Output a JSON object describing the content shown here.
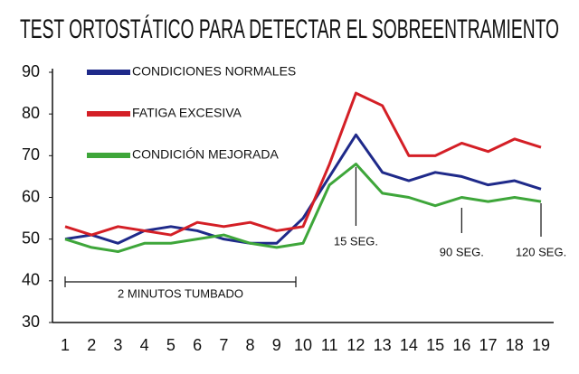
{
  "chart_data": {
    "type": "line",
    "title": "TEST ORTOSTÁTICO PARA DETECTAR EL SOBREENTRAMIENTO",
    "categories": [
      1,
      2,
      3,
      4,
      5,
      6,
      7,
      8,
      9,
      10,
      11,
      12,
      13,
      14,
      15,
      16,
      17,
      18,
      19
    ],
    "series": [
      {
        "name": "CONDICIONES NORMALES",
        "color": "#1f2a8a",
        "values": [
          50,
          51,
          49,
          52,
          53,
          52,
          50,
          49,
          49,
          55,
          65,
          75,
          66,
          64,
          66,
          65,
          63,
          64,
          62
        ]
      },
      {
        "name": "FATIGA EXCESIVA",
        "color": "#d41f26",
        "values": [
          53,
          51,
          53,
          52,
          51,
          54,
          53,
          54,
          52,
          53,
          68,
          85,
          82,
          70,
          70,
          73,
          71,
          74,
          72
        ]
      },
      {
        "name": "CONDICIÓN MEJORADA",
        "color": "#3ea63a",
        "values": [
          50,
          48,
          47,
          49,
          49,
          50,
          51,
          49,
          48,
          49,
          63,
          68,
          61,
          60,
          58,
          60,
          59,
          60,
          59
        ]
      }
    ],
    "ylim": [
      30,
      90
    ],
    "yticks": [
      30,
      40,
      50,
      60,
      70,
      80,
      90
    ],
    "annotations": [
      "15 SEG.",
      "90 SEG.",
      "120 SEG.",
      "2 MINUTOS TUMBADO"
    ]
  }
}
